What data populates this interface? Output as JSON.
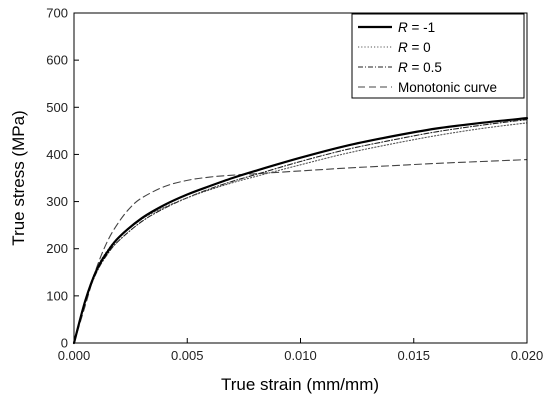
{
  "chart_data": {
    "type": "line",
    "xlabel": "True strain (mm/mm)",
    "ylabel": "True stress (MPa)",
    "xlim": [
      0,
      0.02
    ],
    "ylim": [
      0,
      700
    ],
    "x_ticks": [
      "0.000",
      "0.005",
      "0.010",
      "0.015",
      "0.020"
    ],
    "y_ticks": [
      "0",
      "100",
      "200",
      "300",
      "400",
      "500",
      "600",
      "700"
    ],
    "grid": false,
    "legend_position": "top-right",
    "series": [
      {
        "name": "R = -1",
        "legend_prefix": "R",
        "legend_suffix": " = -1",
        "style": "solid",
        "x": [
          0,
          0.0005,
          0.001,
          0.0015,
          0.002,
          0.003,
          0.004,
          0.005,
          0.006,
          0.007,
          0.008,
          0.01,
          0.012,
          0.014,
          0.016,
          0.018,
          0.02
        ],
        "y": [
          0,
          90,
          155,
          195,
          225,
          265,
          293,
          315,
          333,
          350,
          365,
          393,
          418,
          438,
          455,
          467,
          477
        ]
      },
      {
        "name": "R = 0",
        "legend_prefix": "R",
        "legend_suffix": " = 0",
        "style": "dotted",
        "x": [
          0,
          0.0005,
          0.001,
          0.0015,
          0.002,
          0.003,
          0.004,
          0.005,
          0.006,
          0.007,
          0.008,
          0.01,
          0.012,
          0.014,
          0.016,
          0.018,
          0.02
        ],
        "y": [
          0,
          92,
          158,
          198,
          225,
          263,
          288,
          308,
          325,
          340,
          353,
          378,
          402,
          422,
          440,
          455,
          467
        ]
      },
      {
        "name": "R = 0.5",
        "legend_prefix": "R",
        "legend_suffix": " = 0.5",
        "style": "dashdot",
        "x": [
          0,
          0.0005,
          0.001,
          0.0015,
          0.002,
          0.003,
          0.004,
          0.005,
          0.006,
          0.007,
          0.008,
          0.01,
          0.012,
          0.014,
          0.016,
          0.018,
          0.02
        ],
        "y": [
          0,
          88,
          150,
          190,
          218,
          258,
          286,
          308,
          327,
          343,
          357,
          385,
          410,
          430,
          448,
          462,
          474
        ]
      },
      {
        "name": "Monotonic curve",
        "legend_prefix": "",
        "legend_suffix": "Monotonic curve",
        "style": "dashed",
        "x": [
          0,
          0.0005,
          0.001,
          0.0015,
          0.002,
          0.0025,
          0.003,
          0.004,
          0.005,
          0.006,
          0.007,
          0.008,
          0.01,
          0.012,
          0.014,
          0.016,
          0.018,
          0.02
        ],
        "y": [
          0,
          80,
          160,
          218,
          258,
          288,
          308,
          332,
          345,
          352,
          356,
          359,
          365,
          371,
          376,
          381,
          385,
          389
        ]
      }
    ]
  }
}
